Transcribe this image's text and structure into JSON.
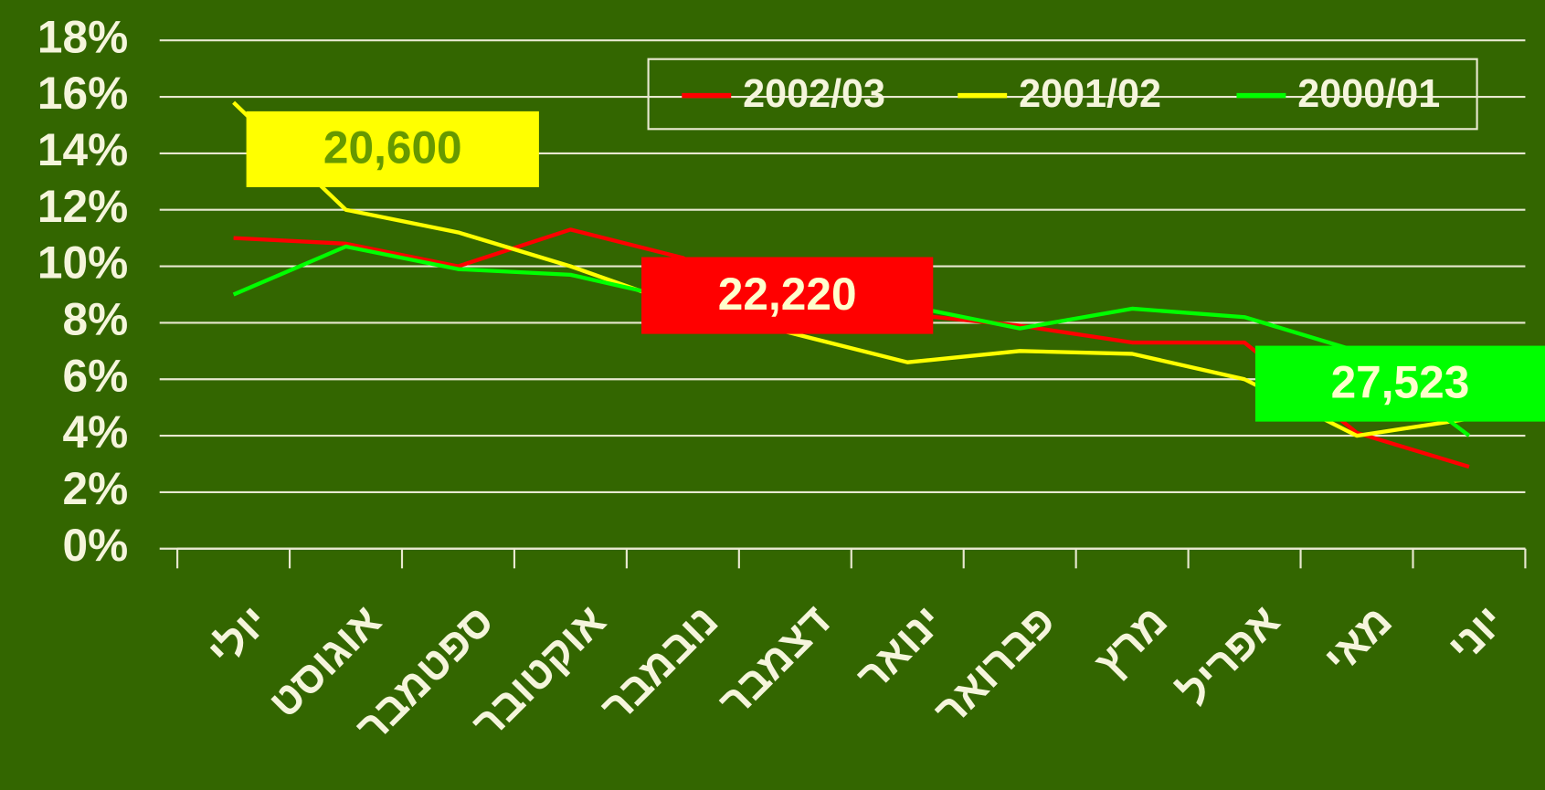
{
  "chart_data": {
    "type": "line",
    "categories": [
      "יולי",
      "אוגוסט",
      "ספטמבר",
      "אוקטובר",
      "נובמבר",
      "דצמבר",
      "ינואר",
      "פברואר",
      "מרץ",
      "אפריל",
      "מאי",
      "יוני"
    ],
    "series": [
      {
        "name": "2002/03",
        "color": "#ff0000",
        "values": [
          11.0,
          10.8,
          10.0,
          11.3,
          10.3,
          8.0,
          8.3,
          7.9,
          7.3,
          7.3,
          4.1,
          2.9
        ]
      },
      {
        "name": "2001/02",
        "color": "#ffff00",
        "values": [
          15.8,
          12.0,
          11.2,
          10.0,
          8.6,
          7.6,
          6.6,
          7.0,
          6.9,
          6.0,
          4.0,
          4.6
        ]
      },
      {
        "name": "2000/01",
        "color": "#00ff00",
        "values": [
          9.0,
          10.7,
          9.9,
          9.7,
          8.8,
          9.0,
          8.6,
          7.8,
          8.5,
          8.2,
          7.0,
          4.0
        ]
      }
    ],
    "ylim": [
      0,
      18
    ],
    "yticks": [
      {
        "value": 0,
        "label": "0%"
      },
      {
        "value": 2,
        "label": "2%"
      },
      {
        "value": 4,
        "label": "4%"
      },
      {
        "value": 6,
        "label": "6%"
      },
      {
        "value": 8,
        "label": "8%"
      },
      {
        "value": 10,
        "label": "10%"
      },
      {
        "value": 12,
        "label": "12%"
      },
      {
        "value": 14,
        "label": "14%"
      },
      {
        "value": 16,
        "label": "16%"
      },
      {
        "value": 18,
        "label": "18%"
      }
    ],
    "grid": true,
    "legend": "top-right",
    "annotations": [
      {
        "text": "20,600",
        "color": "#ffff00",
        "text_color": "#669900"
      },
      {
        "text": "22,220",
        "color": "#ff0000",
        "text_color": "#ffffcc"
      },
      {
        "text": "27,523",
        "color": "#00ff00",
        "text_color": "#ffffcc"
      }
    ]
  }
}
